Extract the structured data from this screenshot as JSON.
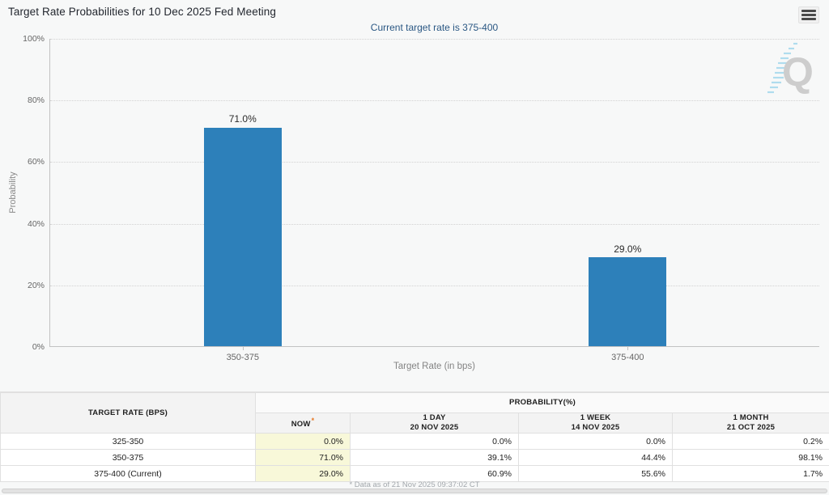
{
  "header": {
    "title": "Target Rate Probabilities for 10 Dec 2025 Fed Meeting",
    "subtitle": "Current target rate is 375-400"
  },
  "chart_data": {
    "type": "bar",
    "categories": [
      "350-375",
      "375-400"
    ],
    "values": [
      71.0,
      29.0
    ],
    "value_labels": [
      "71.0%",
      "29.0%"
    ],
    "title": "",
    "xlabel": "Target Rate (in bps)",
    "ylabel": "Probability",
    "ylim": [
      0,
      100
    ],
    "yticks": [
      0,
      20,
      40,
      60,
      80,
      100
    ],
    "ytick_labels": [
      "0%",
      "20%",
      "40%",
      "60%",
      "80%",
      "100%"
    ],
    "grid": "horizontal-dotted",
    "legend": "none",
    "bar_color": "#2d80ba"
  },
  "watermark": {
    "letter": "Q"
  },
  "table": {
    "col1_header": "TARGET RATE (BPS)",
    "group_header": "PROBABILITY(%)",
    "columns": [
      {
        "label": "NOW",
        "note": "*",
        "dates": ""
      },
      {
        "label": "1 DAY",
        "note": "",
        "dates": "20 NOV 2025"
      },
      {
        "label": "1 WEEK",
        "note": "",
        "dates": "14 NOV 2025"
      },
      {
        "label": "1 MONTH",
        "note": "",
        "dates": "21 OCT 2025"
      }
    ],
    "rows": [
      {
        "rate": "325-350",
        "now": "0.0%",
        "day": "0.0%",
        "week": "0.0%",
        "month": "0.2%"
      },
      {
        "rate": "350-375",
        "now": "71.0%",
        "day": "39.1%",
        "week": "44.4%",
        "month": "98.1%"
      },
      {
        "rate": "375-400 (Current)",
        "now": "29.0%",
        "day": "60.9%",
        "week": "55.6%",
        "month": "1.7%"
      }
    ],
    "now_highlight_color": "#f8f8d9",
    "asterisk_color": "#e87722"
  },
  "footer": {
    "note": "* Data as of 21 Nov 2025 09:37:02 CT"
  }
}
